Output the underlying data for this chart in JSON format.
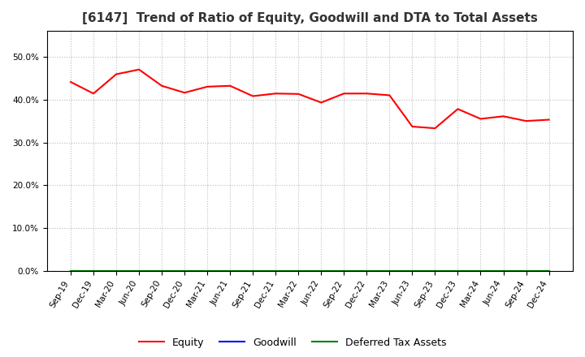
{
  "title": "[6147]  Trend of Ratio of Equity, Goodwill and DTA to Total Assets",
  "x_labels": [
    "Sep-19",
    "Dec-19",
    "Mar-20",
    "Jun-20",
    "Sep-20",
    "Dec-20",
    "Mar-21",
    "Jun-21",
    "Sep-21",
    "Dec-21",
    "Mar-22",
    "Jun-22",
    "Sep-22",
    "Dec-22",
    "Mar-23",
    "Jun-23",
    "Sep-23",
    "Dec-23",
    "Mar-24",
    "Jun-24",
    "Sep-24",
    "Dec-24"
  ],
  "equity": [
    0.441,
    0.414,
    0.459,
    0.47,
    0.432,
    0.416,
    0.43,
    0.432,
    0.408,
    0.414,
    0.413,
    0.393,
    0.414,
    0.414,
    0.41,
    0.337,
    0.333,
    0.378,
    0.355,
    0.361,
    0.35,
    0.353
  ],
  "goodwill": [
    0.0,
    0.0,
    0.0,
    0.0,
    0.0,
    0.0,
    0.0,
    0.0,
    0.0,
    0.0,
    0.0,
    0.0,
    0.0,
    0.0,
    0.0,
    0.0,
    0.0,
    0.0,
    0.0,
    0.0,
    0.0,
    0.0
  ],
  "dta": [
    0.0,
    0.0,
    0.0,
    0.0,
    0.0,
    0.0,
    0.0,
    0.0,
    0.0,
    0.0,
    0.0,
    0.0,
    0.0,
    0.0,
    0.0,
    0.0,
    0.0,
    0.0,
    0.0,
    0.0,
    0.0,
    0.0
  ],
  "equity_color": "#FF0000",
  "goodwill_color": "#0000FF",
  "dta_color": "#008000",
  "ylim": [
    0.0,
    0.56
  ],
  "yticks": [
    0.0,
    0.1,
    0.2,
    0.3,
    0.4,
    0.5
  ],
  "background_color": "#FFFFFF",
  "plot_bg_color": "#FFFFFF",
  "grid_color": "#BBBBBB",
  "title_fontsize": 11,
  "tick_fontsize": 7.5,
  "legend_labels": [
    "Equity",
    "Goodwill",
    "Deferred Tax Assets"
  ],
  "legend_fontsize": 9
}
